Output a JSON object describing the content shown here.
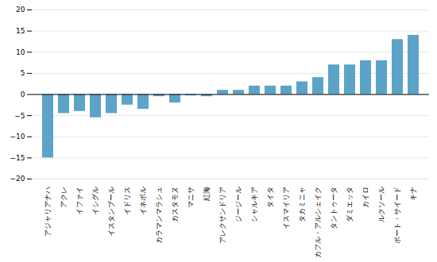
{
  "chart_data": {
    "type": "bar",
    "categories": [
      "アジャリアナハ",
      "アクレ",
      "イファイ",
      "イシグル",
      "イスタンブール",
      "イドリス",
      "イネボル",
      "カラマンマラシュ",
      "カスタモヌ",
      "マニサ",
      "紅海",
      "アレクサンドリア",
      "ジージール",
      "シャルキア",
      "タイタ",
      "イスマイリア",
      "タカミニャ",
      "カフル・アルシェイク",
      "タントゥータ",
      "ダミエッタ",
      "カイロ",
      "ルクソール",
      "ポート・サイード",
      "キナ"
    ],
    "values": [
      -15.0,
      -4.5,
      -4.0,
      -5.5,
      -4.5,
      -2.5,
      -3.5,
      -0.5,
      -2.0,
      -0.3,
      -0.5,
      1.0,
      1.0,
      2.0,
      2.0,
      2.0,
      3.0,
      4.0,
      7.0,
      7.0,
      8.0,
      8.0,
      13.0,
      14.0
    ],
    "color": "#5ba3c9",
    "ylim": [
      -20,
      20
    ],
    "yticks": [
      -20,
      -15,
      -10,
      -5,
      0,
      5,
      10,
      15,
      20
    ],
    "grid": true
  }
}
